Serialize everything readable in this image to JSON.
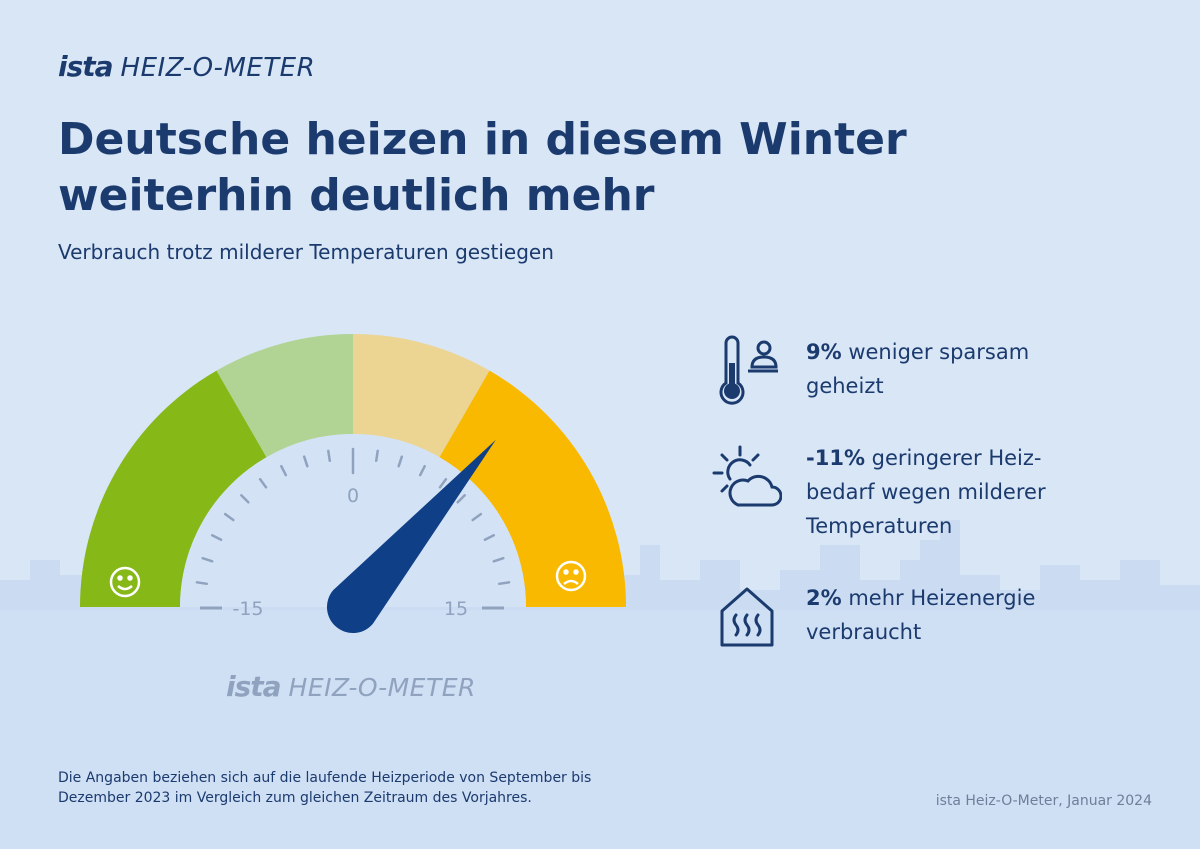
{
  "header": {
    "brand": "ista",
    "product": "HEIZ-O-METER",
    "title_line1": "Deutsche heizen in diesem Winter",
    "title_line2": "weiterhin deutlich mehr",
    "subtitle": "Verbrauch trotz milderer Temperaturen gestiegen"
  },
  "gauge": {
    "tick_labels": [
      "-15",
      "0",
      "15"
    ],
    "needle_value": 9,
    "range": [
      -20,
      20
    ],
    "good_icon": "smiley-happy-icon",
    "bad_icon": "smiley-sad-icon",
    "segment_colors": [
      "#86b817",
      "#b1d394",
      "#ecd492",
      "#f8b900"
    ],
    "brand": "ista",
    "product": "HEIZ-O-METER"
  },
  "facts": [
    {
      "icon": "thermometer-person-icon",
      "value": "9%",
      "text": " weniger sparsam geheizt"
    },
    {
      "icon": "sun-cloud-icon",
      "value": "-11%",
      "text": " geringerer Heiz-bedarf wegen milderer Temperaturen"
    },
    {
      "icon": "house-heating-icon",
      "value": "2%",
      "text": " mehr Heizenergie verbraucht"
    }
  ],
  "footer": {
    "note": "Die Angaben beziehen sich auf die laufende Heizperiode von September bis Dezember 2023 im Vergleich zum gleichen Zeitraum des Vorjahres.",
    "source": "ista Heiz-O-Meter, Januar 2024"
  },
  "colors": {
    "navy": "#1b3a6e",
    "needle": "#0f3f86",
    "background": "#d8e6f6"
  }
}
